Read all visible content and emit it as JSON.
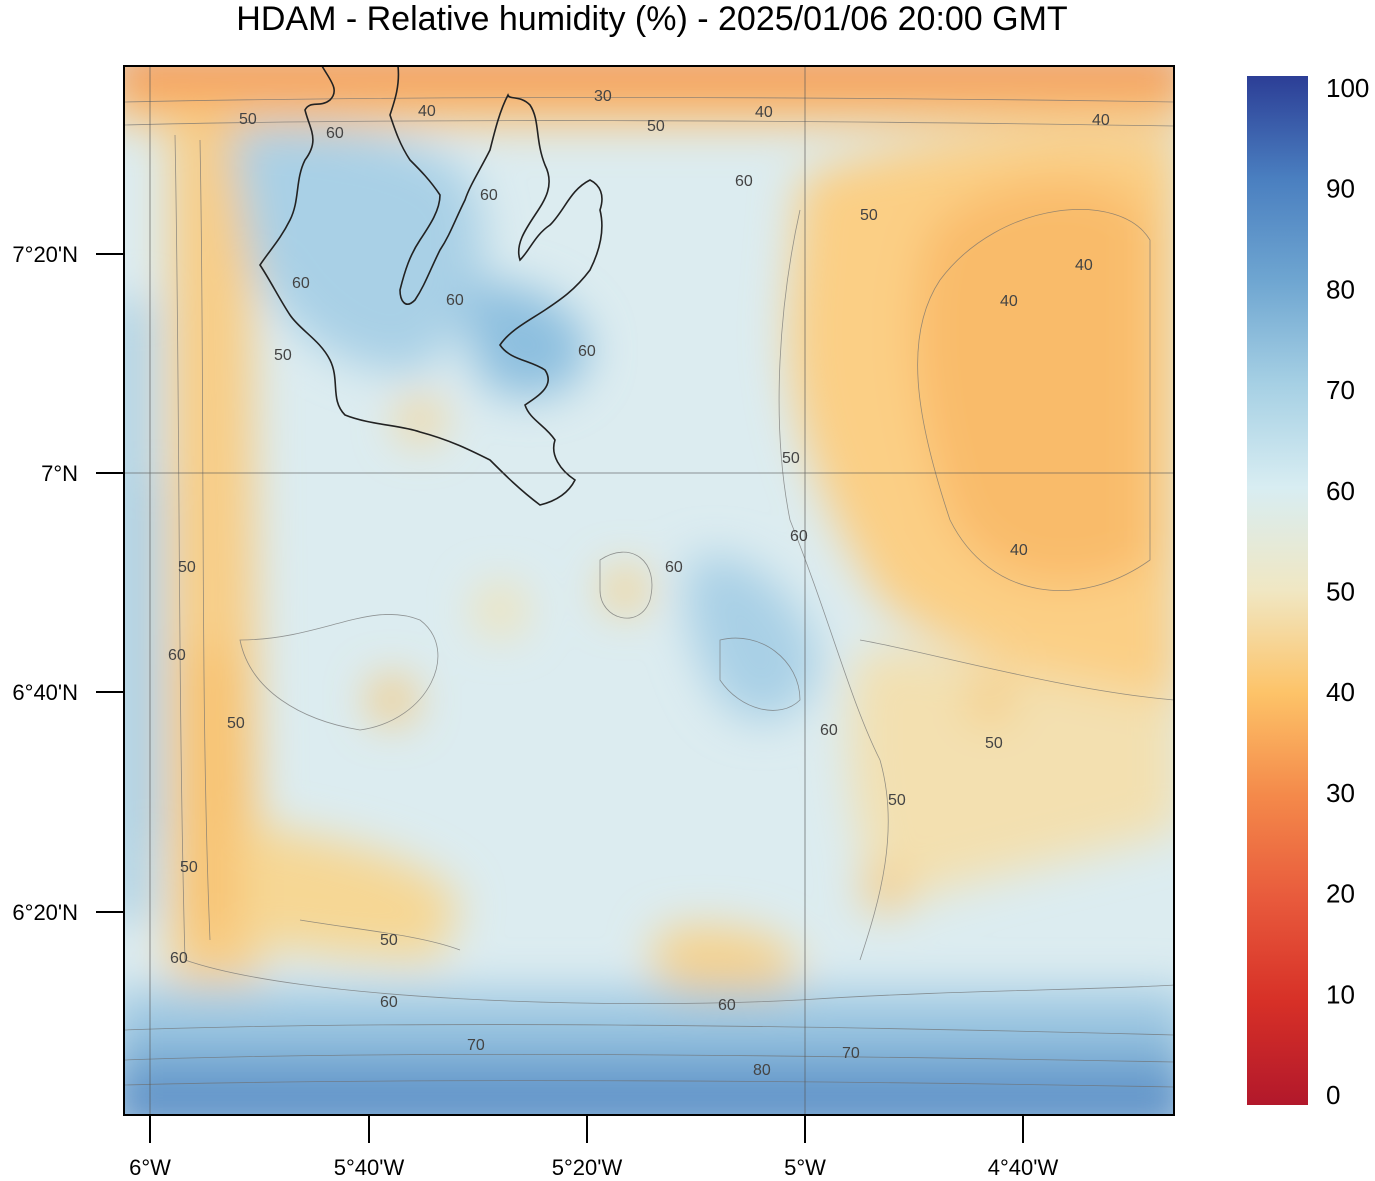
{
  "title": "HDAM - Relative humidity (%)  -  2025/01/06  20:00 GMT",
  "x_axis_labels": [
    "6°W",
    "5°40'W",
    "5°20'W",
    "5°W",
    "4°40'W"
  ],
  "y_axis_labels": [
    "7°20'N",
    "7°N",
    "6°40'N",
    "6°20'N"
  ],
  "colorbar": {
    "tick_labels": [
      "0",
      "10",
      "20",
      "30",
      "40",
      "50",
      "60",
      "70",
      "80",
      "90",
      "100"
    ],
    "stops": [
      {
        "value": 0,
        "color": "#b2182b"
      },
      {
        "value": 10,
        "color": "#d73027"
      },
      {
        "value": 20,
        "color": "#e85a3c"
      },
      {
        "value": 30,
        "color": "#f4894a"
      },
      {
        "value": 40,
        "color": "#fdc368"
      },
      {
        "value": 50,
        "color": "#f0e7c3"
      },
      {
        "value": 60,
        "color": "#d8edf2"
      },
      {
        "value": 70,
        "color": "#a6d0e4"
      },
      {
        "value": 80,
        "color": "#6fa6d1"
      },
      {
        "value": 90,
        "color": "#4a7fc0"
      },
      {
        "value": 100,
        "color": "#2c3e96"
      }
    ]
  },
  "contour_labels": [
    "30",
    "40",
    "50",
    "40",
    "40",
    "60",
    "50",
    "60",
    "60",
    "60",
    "40",
    "40",
    "50",
    "40",
    "50",
    "60",
    "60",
    "50",
    "60",
    "40",
    "50",
    "60",
    "60",
    "50",
    "50",
    "50",
    "60",
    "50",
    "60",
    "60",
    "60",
    "70",
    "80",
    "70",
    "50"
  ]
}
